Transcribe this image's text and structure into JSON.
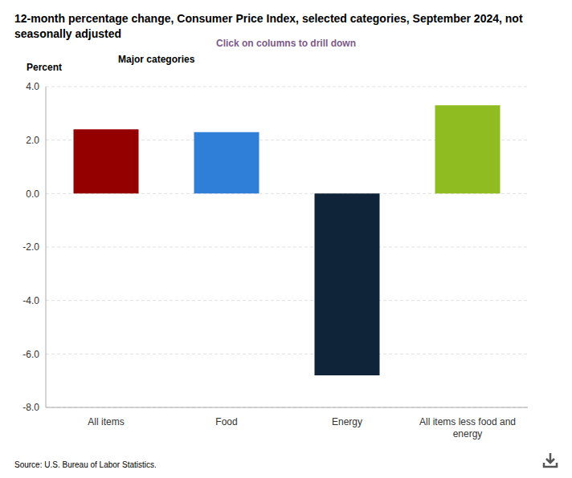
{
  "chart_data": {
    "type": "bar",
    "title": "12-month percentage change, Consumer Price Index, selected categories, September 2024, not seasonally adjusted",
    "subtitle": "Major categories",
    "annotations": [
      "Click on columns to drill down",
      "Source: U.S. Bureau of Labor Statistics."
    ],
    "y_label": "Percent",
    "categories": [
      "All items",
      "Food",
      "Energy",
      "All items less food and energy"
    ],
    "values": [
      2.4,
      2.3,
      -6.8,
      3.3
    ],
    "colors": [
      "#940000",
      "#2f7fd8",
      "#0f2339",
      "#8fbc21"
    ],
    "ylim": [
      -8,
      4
    ],
    "yticks": [
      {
        "value": -8,
        "label": "-8.0"
      },
      {
        "value": -6,
        "label": "-6.0"
      },
      {
        "value": -4,
        "label": "-4.0"
      },
      {
        "value": -2,
        "label": "-2.0"
      },
      {
        "value": 0,
        "label": "0.0"
      },
      {
        "value": 2,
        "label": "2.0"
      },
      {
        "value": 4,
        "label": "4.0"
      }
    ],
    "grid": true
  }
}
